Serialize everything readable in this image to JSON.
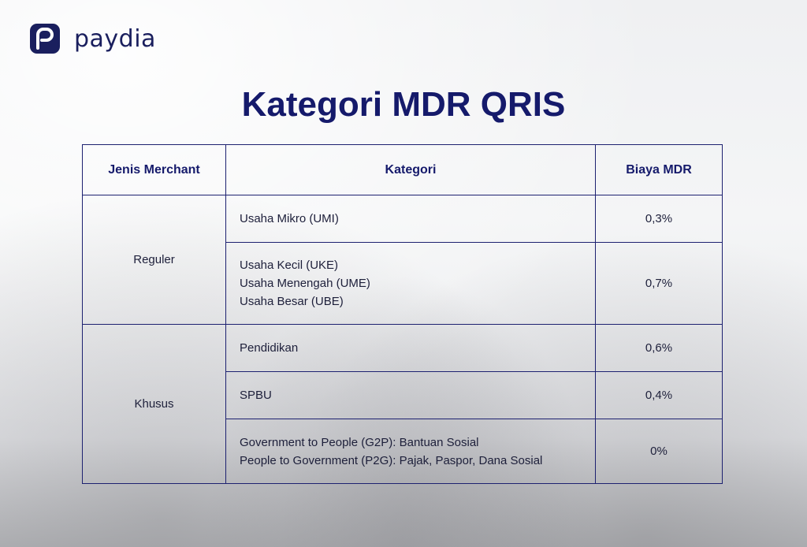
{
  "brand": {
    "name": "paydia",
    "logo_icon": "paydia-p-logo-icon",
    "color": "#1a1f5e"
  },
  "title": "Kategori MDR QRIS",
  "table": {
    "headers": [
      "Jenis Merchant",
      "Kategori",
      "Biaya MDR"
    ],
    "groups": [
      {
        "merchant": "Reguler",
        "rows": [
          {
            "kategori": [
              "Usaha Mikro (UMI)"
            ],
            "biaya": "0,3%"
          },
          {
            "kategori": [
              "Usaha Kecil (UKE)",
              "Usaha Menengah (UME)",
              "Usaha Besar (UBE)"
            ],
            "biaya": "0,7%"
          }
        ]
      },
      {
        "merchant": "Khusus",
        "rows": [
          {
            "kategori": [
              "Pendidikan"
            ],
            "biaya": "0,6%"
          },
          {
            "kategori": [
              "SPBU"
            ],
            "biaya": "0,4%"
          },
          {
            "kategori": [
              "Government to People (G2P): Bantuan Sosial",
              "People to Government (P2G): Pajak, Paspor, Dana Sosial"
            ],
            "biaya": "0%"
          }
        ]
      }
    ]
  },
  "colors": {
    "title": "#151a6b",
    "border": "#1d2170"
  }
}
